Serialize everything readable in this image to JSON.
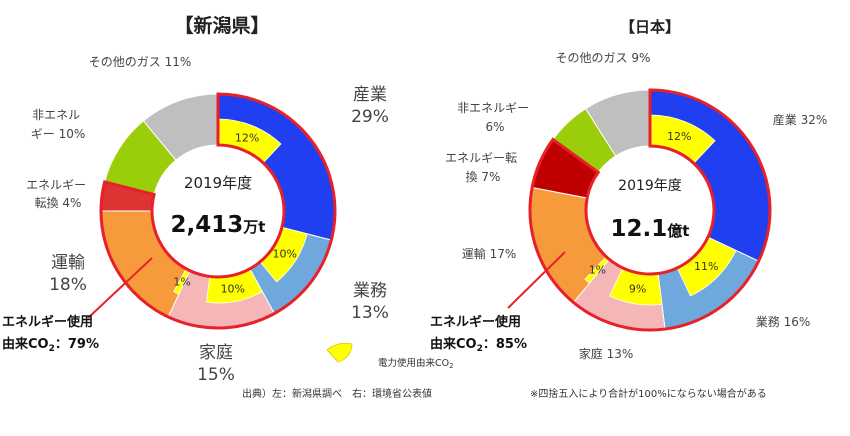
{
  "chart_data": [
    {
      "type": "pie",
      "title": "【新潟県】",
      "center_label": "2019年度",
      "total_value": "2,413",
      "total_unit": "万t",
      "slices": [
        {
          "label": "産業",
          "value": 29,
          "pct": "29%",
          "color": "#1f3ff0",
          "energy": true
        },
        {
          "label": "業務",
          "value": 13,
          "pct": "13%",
          "color": "#6fa8dc",
          "energy": true
        },
        {
          "label": "家庭",
          "value": 15,
          "pct": "15%",
          "color": "#f4b6b6",
          "energy": true
        },
        {
          "label": "運輸",
          "value": 18,
          "pct": "18%",
          "color": "#f79a3c",
          "energy": true
        },
        {
          "label": "エネルギー転換",
          "value": 4,
          "pct": "4%",
          "color": "#dd3333",
          "energy": true
        },
        {
          "label": "非エネルギー",
          "value": 10,
          "pct": "10%",
          "color": "#9acd0a",
          "energy": false
        },
        {
          "label": "その他のガス",
          "value": 11,
          "pct": "11%",
          "color": "#bfbfbf",
          "energy": false
        }
      ],
      "electric": [
        {
          "sector": "産業",
          "value": 12,
          "label": "12%"
        },
        {
          "sector": "業務",
          "value": 10,
          "label": "10%"
        },
        {
          "sector": "家庭",
          "value": 10,
          "label": "10%"
        },
        {
          "sector": "運輸",
          "value": 1,
          "label": "1%"
        }
      ],
      "energy_text_1": "エネルギー使用",
      "energy_text_2": "由来CO",
      "energy_text_sub": "2",
      "energy_text_3": "：79%"
    },
    {
      "type": "pie",
      "title": "【日本】",
      "center_label": "2019年度",
      "total_value": "12.1",
      "total_unit": "億t",
      "slices": [
        {
          "label": "産業",
          "value": 32,
          "pct": "32%",
          "color": "#1f3ff0",
          "energy": true
        },
        {
          "label": "業務",
          "value": 16,
          "pct": "16%",
          "color": "#6fa8dc",
          "energy": true
        },
        {
          "label": "家庭",
          "value": 13,
          "pct": "13%",
          "color": "#f4b6b6",
          "energy": true
        },
        {
          "label": "運輸",
          "value": 17,
          "pct": "17%",
          "color": "#f79a3c",
          "energy": true
        },
        {
          "label": "エネルギー転換",
          "value": 7,
          "pct": "7%",
          "color": "#c00000",
          "energy": true
        },
        {
          "label": "非エネルギー",
          "value": 6,
          "pct": "6%",
          "color": "#9acd0a",
          "energy": false
        },
        {
          "label": "その他のガス",
          "value": 9,
          "pct": "9%",
          "color": "#bfbfbf",
          "energy": false
        }
      ],
      "electric": [
        {
          "sector": "産業",
          "value": 12,
          "label": "12%"
        },
        {
          "sector": "業務",
          "value": 11,
          "label": "11%"
        },
        {
          "sector": "家庭",
          "value": 9,
          "label": "9%"
        },
        {
          "sector": "運輸",
          "value": 1,
          "label": "1%"
        }
      ],
      "energy_text_1": "エネルギー使用",
      "energy_text_2": "由来CO",
      "energy_text_sub": "2",
      "energy_text_3": "：85%"
    }
  ],
  "legend": {
    "text": "電力使用由来CO",
    "sub": "2",
    "color": "#ffff00"
  },
  "source": "出典）左：新潟県調べ　右：環境省公表値",
  "note": "※四捨五入により合計が100%にならない場合がある"
}
